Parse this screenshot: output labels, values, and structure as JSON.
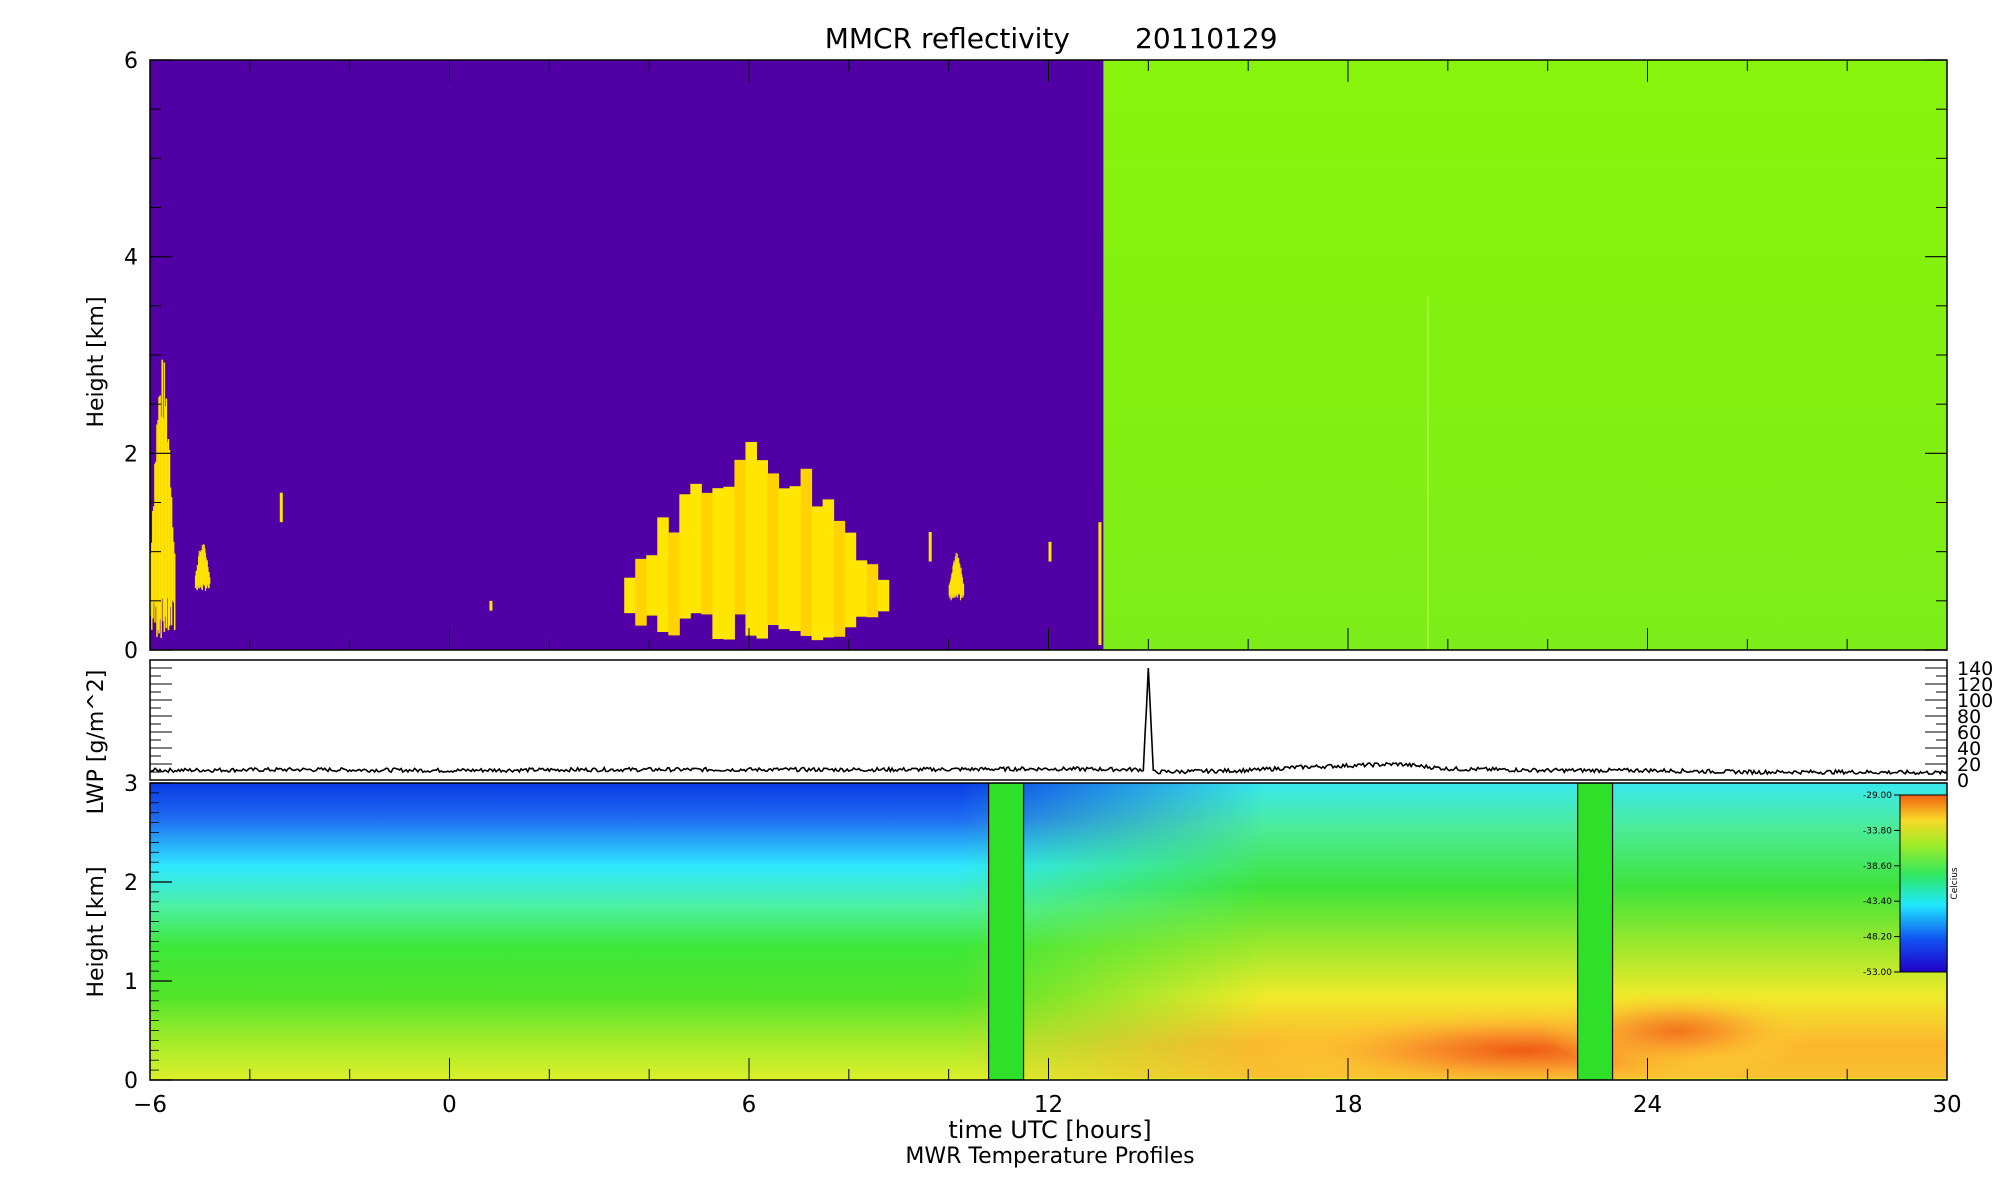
{
  "figure": {
    "title": "MMCR reflectivity",
    "date": "20110129",
    "xlabel": "time UTC [hours]",
    "subtitle": "MWR Temperature Profiles"
  },
  "chart_data": [
    {
      "type": "heatmap",
      "name": "reflectivity",
      "title": "MMCR reflectivity      20110129",
      "xlabel": "time UTC [hours]",
      "ylabel": "Height [km]",
      "xlim": [
        -6,
        30
      ],
      "ylim": [
        0,
        6
      ],
      "xticks": [
        -6,
        0,
        6,
        12,
        18,
        24,
        30
      ],
      "yticks": [
        0,
        2,
        4,
        6
      ],
      "colors": {
        "background": "#5000a5",
        "cloud": "#ffe600",
        "cloud_core": "#ffd200",
        "noise": "#86f20c"
      },
      "noise_region": {
        "x_start": 13.1,
        "x_end": 30
      },
      "cloud_regions": [
        {
          "x_start": -6.0,
          "x_end": -5.5,
          "y_bottom": 0.1,
          "y_top": 3.0
        },
        {
          "x_start": -5.1,
          "x_end": -4.8,
          "y_bottom": 0.6,
          "y_top": 1.1
        },
        {
          "x_start": 3.5,
          "x_end": 8.8,
          "y_bottom": 0.1,
          "y_top": 2.2
        },
        {
          "x_start": 10.0,
          "x_end": 10.3,
          "y_bottom": 0.5,
          "y_top": 1.0
        }
      ]
    },
    {
      "type": "line",
      "name": "LWP",
      "ylabel": "LWP [g/m^2]",
      "xlim": [
        -6,
        30
      ],
      "ylim": [
        0,
        150
      ],
      "yticks": [
        0,
        20,
        40,
        60,
        80,
        100,
        120,
        140
      ],
      "x": [
        -6,
        -3,
        0,
        3,
        6,
        9,
        12,
        13.9,
        14.0,
        14.1,
        16,
        17,
        18,
        19,
        20,
        22,
        24,
        26,
        28,
        30
      ],
      "y": [
        12,
        13,
        12,
        13,
        13,
        13,
        14,
        13,
        140,
        10,
        12,
        16,
        18,
        20,
        14,
        12,
        12,
        10,
        10,
        9
      ]
    },
    {
      "type": "heatmap",
      "name": "temperature",
      "title": "MWR Temperature Profiles",
      "xlabel": "time UTC [hours]",
      "ylabel": "Height [km]",
      "xlim": [
        -6,
        30
      ],
      "ylim": [
        0,
        3
      ],
      "xticks": [
        -6,
        0,
        6,
        12,
        18,
        24,
        30
      ],
      "yticks": [
        0,
        1,
        2,
        3
      ],
      "colorbar": {
        "label": "Celcius",
        "ticks": [
          "-29.00",
          "-33.80",
          "-38.60",
          "-43.40",
          "-48.20",
          "-53.00"
        ],
        "range": [
          -53,
          -29
        ]
      },
      "missing_gaps": [
        {
          "x_start": 10.8,
          "x_end": 11.5
        },
        {
          "x_start": 22.6,
          "x_end": 23.3
        }
      ],
      "surface_warm_core_celsius": -30
    }
  ]
}
